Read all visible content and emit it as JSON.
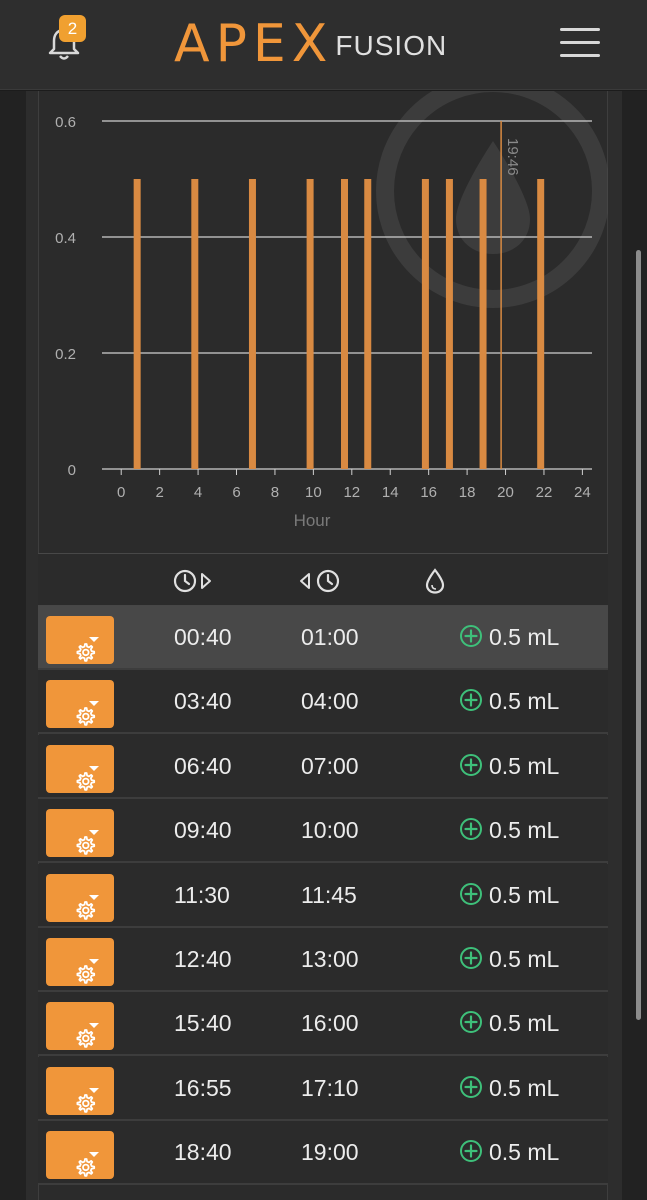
{
  "header": {
    "notification_count": "2",
    "logo_main": "APEX",
    "logo_sub": "FUSION"
  },
  "chart_data": {
    "type": "bar",
    "xlabel": "Hour",
    "ylabel": "",
    "xlim": [
      -1,
      24.5
    ],
    "ylim": [
      0,
      0.6
    ],
    "x_ticks": [
      "0",
      "2",
      "4",
      "6",
      "8",
      "10",
      "12",
      "14",
      "16",
      "18",
      "20",
      "22",
      "24"
    ],
    "y_ticks": [
      "0",
      "0.2",
      "0.4",
      "0.6"
    ],
    "grid": true,
    "bars_x": [
      0.83,
      3.83,
      6.83,
      9.83,
      11.62,
      12.83,
      15.83,
      17.08,
      18.83,
      21.83
    ],
    "values": [
      0.5,
      0.5,
      0.5,
      0.5,
      0.5,
      0.5,
      0.5,
      0.5,
      0.5,
      0.5
    ],
    "current_time_marker": {
      "x": 19.77,
      "label": "19:46"
    },
    "colors": {
      "bar": "#d98a42",
      "marker": "#d98a42",
      "grid": "#d0d0d0"
    }
  },
  "table": {
    "rows": [
      {
        "start": "00:40",
        "end": "01:00",
        "volume": "0.5 mL",
        "selected": true
      },
      {
        "start": "03:40",
        "end": "04:00",
        "volume": "0.5 mL"
      },
      {
        "start": "06:40",
        "end": "07:00",
        "volume": "0.5 mL"
      },
      {
        "start": "09:40",
        "end": "10:00",
        "volume": "0.5 mL"
      },
      {
        "start": "11:30",
        "end": "11:45",
        "volume": "0.5 mL"
      },
      {
        "start": "12:40",
        "end": "13:00",
        "volume": "0.5 mL"
      },
      {
        "start": "15:40",
        "end": "16:00",
        "volume": "0.5 mL"
      },
      {
        "start": "16:55",
        "end": "17:10",
        "volume": "0.5 mL"
      },
      {
        "start": "18:40",
        "end": "19:00",
        "volume": "0.5 mL"
      }
    ]
  },
  "colors": {
    "accent": "#f0963a",
    "add_icon": "#3ec07a",
    "badge": "#f0a030"
  }
}
